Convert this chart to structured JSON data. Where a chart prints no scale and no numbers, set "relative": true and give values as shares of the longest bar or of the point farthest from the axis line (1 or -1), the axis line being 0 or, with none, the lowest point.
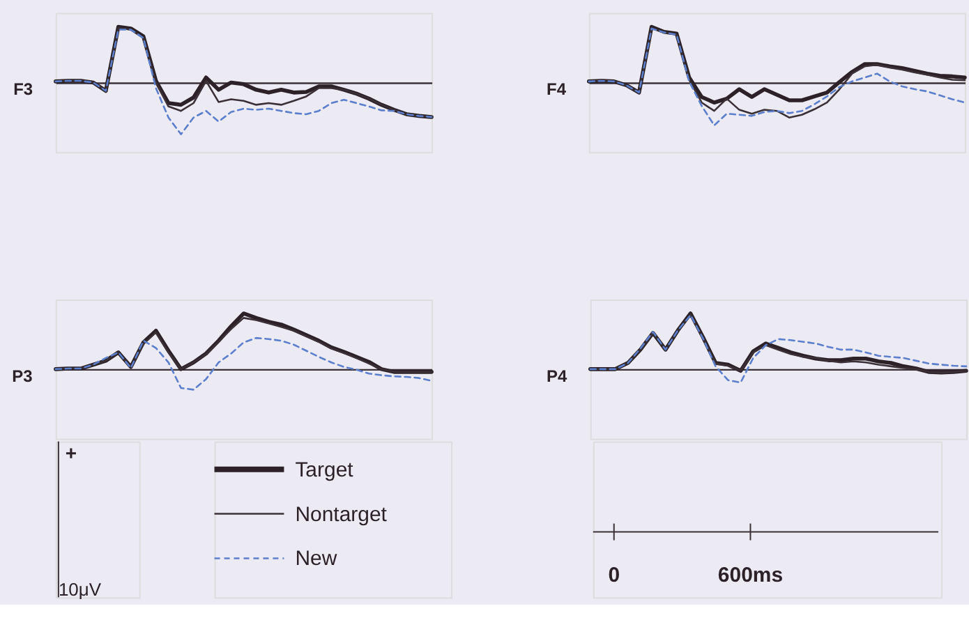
{
  "chart_data": [
    {
      "type": "line",
      "title": "F3",
      "relative": true,
      "legend": "bottom",
      "categories": [
        null,
        null,
        null,
        null,
        null,
        null,
        null,
        null,
        null,
        null,
        null,
        null,
        null,
        null,
        null,
        null,
        null,
        null,
        null,
        null,
        null,
        null,
        null,
        null,
        null,
        null,
        null,
        null,
        null,
        null,
        null
      ],
      "series": [
        {
          "name": "Target",
          "color": "#2b2126",
          "values": [
            0.02,
            0.03,
            0.03,
            0,
            -0.15,
            1.0,
            0.97,
            0.83,
            0.03,
            -0.37,
            -0.4,
            -0.27,
            0.09,
            -0.13,
            0,
            -0.03,
            -0.13,
            -0.18,
            -0.13,
            -0.18,
            -0.17,
            -0.07,
            -0.07,
            -0.13,
            -0.2,
            -0.29,
            -0.4,
            -0.49,
            -0.57,
            -0.6,
            -0.62
          ]
        },
        {
          "name": "Nontarget",
          "color": "#3a3035",
          "values": [
            0.02,
            0.03,
            0.03,
            0,
            -0.15,
            0.98,
            0.95,
            0.8,
            0,
            -0.43,
            -0.51,
            -0.37,
            0.03,
            -0.35,
            -0.3,
            -0.33,
            -0.4,
            -0.37,
            -0.4,
            -0.33,
            -0.25,
            -0.1,
            -0.1,
            -0.13,
            -0.2,
            -0.29,
            -0.4,
            -0.49,
            -0.57,
            -0.6,
            -0.62
          ]
        },
        {
          "name": "New",
          "color": "#5b7fcc",
          "line_style": "dashed",
          "values": [
            0.02,
            0.03,
            0.03,
            0,
            -0.15,
            0.95,
            0.95,
            0.8,
            -0.1,
            -0.63,
            -0.93,
            -0.63,
            -0.51,
            -0.7,
            -0.53,
            -0.47,
            -0.49,
            -0.47,
            -0.51,
            -0.55,
            -0.57,
            -0.51,
            -0.37,
            -0.31,
            -0.37,
            -0.43,
            -0.5,
            -0.51,
            -0.57,
            -0.6,
            -0.62
          ]
        }
      ]
    },
    {
      "type": "line",
      "title": "F4",
      "relative": true,
      "categories": [
        null,
        null,
        null,
        null,
        null,
        null,
        null,
        null,
        null,
        null,
        null,
        null,
        null,
        null,
        null,
        null,
        null,
        null,
        null,
        null,
        null,
        null,
        null,
        null,
        null,
        null,
        null,
        null,
        null,
        null,
        null
      ],
      "series": [
        {
          "color": "#2b2126",
          "values": [
            0.02,
            0.03,
            0.02,
            -0.05,
            -0.18,
            1.0,
            0.91,
            0.88,
            0.09,
            -0.26,
            -0.36,
            -0.29,
            -0.12,
            -0.26,
            -0.12,
            -0.22,
            -0.32,
            -0.32,
            -0.25,
            -0.18,
            0.01,
            0.19,
            0.33,
            0.33,
            0.29,
            0.26,
            0.21,
            0.16,
            0.12,
            0.11,
            0.09
          ]
        },
        {
          "color": "#3a3035",
          "values": [
            0.02,
            0.03,
            0.02,
            -0.05,
            -0.18,
            0.98,
            0.9,
            0.86,
            0.05,
            -0.36,
            -0.51,
            -0.29,
            -0.49,
            -0.56,
            -0.49,
            -0.51,
            -0.63,
            -0.58,
            -0.48,
            -0.36,
            -0.12,
            0.16,
            0.29,
            0.32,
            0.27,
            0.23,
            0.18,
            0.14,
            0.09,
            0.05,
            0.04
          ]
        },
        {
          "color": "#5b7fcc",
          "line_style": "dashed",
          "values": [
            0.02,
            0.03,
            0.02,
            -0.05,
            -0.18,
            0.97,
            0.9,
            0.86,
            0.02,
            -0.42,
            -0.77,
            -0.56,
            -0.58,
            -0.6,
            -0.53,
            -0.51,
            -0.55,
            -0.51,
            -0.39,
            -0.25,
            -0.08,
            0.02,
            0.09,
            0.16,
            0.02,
            -0.07,
            -0.12,
            -0.16,
            -0.23,
            -0.3,
            -0.36
          ]
        }
      ]
    },
    {
      "type": "line",
      "title": "P3",
      "relative": true,
      "categories": [
        null,
        null,
        null,
        null,
        null,
        null,
        null,
        null,
        null,
        null,
        null,
        null,
        null,
        null,
        null,
        null,
        null,
        null,
        null,
        null,
        null,
        null,
        null,
        null,
        null,
        null,
        null,
        null,
        null,
        null,
        null
      ],
      "series": [
        {
          "color": "#2b2126",
          "values": [
            0,
            0.01,
            0.01,
            0.08,
            0.15,
            0.3,
            0.04,
            0.48,
            0.69,
            0.33,
            0,
            0.12,
            0.28,
            0.51,
            0.77,
            1.0,
            0.92,
            0.85,
            0.8,
            0.71,
            0.61,
            0.51,
            0.39,
            0.31,
            0.22,
            0.13,
            0,
            -0.05,
            -0.05,
            -0.05,
            -0.05
          ]
        },
        {
          "color": "#3a3035",
          "values": [
            0,
            0.01,
            0.01,
            0.08,
            0.15,
            0.3,
            0.04,
            0.45,
            0.66,
            0.3,
            0,
            0.12,
            0.27,
            0.49,
            0.72,
            0.92,
            0.88,
            0.82,
            0.76,
            0.69,
            0.59,
            0.49,
            0.37,
            0.29,
            0.2,
            0.1,
            0,
            -0.05,
            -0.05,
            -0.05,
            -0.05
          ]
        },
        {
          "color": "#5b7fcc",
          "line_style": "dashed",
          "values": [
            0,
            0.01,
            0.01,
            0.08,
            0.2,
            0.3,
            0.02,
            0.51,
            0.38,
            0.12,
            -0.34,
            -0.37,
            -0.18,
            0.12,
            0.28,
            0.48,
            0.56,
            0.54,
            0.51,
            0.44,
            0.33,
            0.22,
            0.12,
            0.04,
            -0.01,
            -0.08,
            -0.11,
            -0.13,
            -0.14,
            -0.16,
            -0.21
          ]
        }
      ]
    },
    {
      "type": "line",
      "title": "P4",
      "relative": true,
      "categories": [
        null,
        null,
        null,
        null,
        null,
        null,
        null,
        null,
        null,
        null,
        null,
        null,
        null,
        null,
        null,
        null,
        null,
        null,
        null,
        null,
        null,
        null,
        null,
        null,
        null,
        null,
        null,
        null,
        null,
        null,
        null
      ],
      "series": [
        {
          "color": "#2b2126",
          "values": [
            0,
            0,
            0,
            0.11,
            0.35,
            0.65,
            0.35,
            0.7,
            1.0,
            0.57,
            0.11,
            0.08,
            -0.03,
            0.32,
            0.46,
            0.38,
            0.3,
            0.24,
            0.19,
            0.16,
            0.16,
            0.19,
            0.19,
            0.14,
            0.11,
            0.05,
            0.01,
            -0.05,
            -0.06,
            -0.05,
            -0.03
          ]
        },
        {
          "color": "#3a3035",
          "values": [
            0,
            0,
            0,
            0.11,
            0.35,
            0.65,
            0.35,
            0.7,
            0.98,
            0.55,
            0.1,
            0.06,
            -0.03,
            0.3,
            0.43,
            0.35,
            0.27,
            0.22,
            0.2,
            0.15,
            0.12,
            0.14,
            0.12,
            0.08,
            0.05,
            0.02,
            0,
            -0.05,
            -0.06,
            -0.05,
            -0.03
          ]
        },
        {
          "color": "#5b7fcc",
          "line_style": "dashed",
          "values": [
            0,
            0,
            0,
            0.11,
            0.37,
            0.67,
            0.35,
            0.7,
            0.97,
            0.55,
            0.05,
            -0.2,
            -0.24,
            0.2,
            0.43,
            0.54,
            0.52,
            0.49,
            0.46,
            0.4,
            0.35,
            0.35,
            0.3,
            0.24,
            0.22,
            0.2,
            0.15,
            0.1,
            0.08,
            0.06,
            0.05
          ]
        }
      ]
    },
    {
      "type": "other",
      "annotations": [
        "+",
        "10μV",
        "0",
        "600ms"
      ]
    }
  ]
}
